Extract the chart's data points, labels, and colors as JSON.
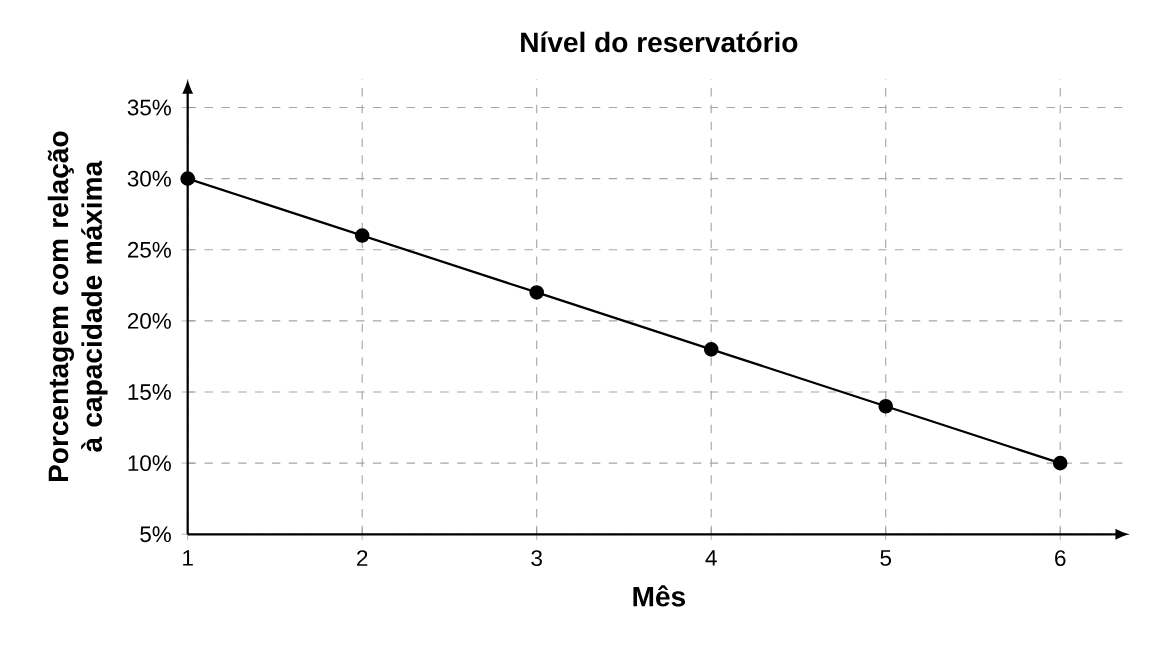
{
  "chart_data": {
    "type": "line",
    "title": "Nível do reservatório",
    "xlabel": "Mês",
    "ylabel": "Porcentagem com relação à capacidade máxima",
    "x": [
      1,
      2,
      3,
      4,
      5,
      6
    ],
    "series": [
      {
        "color": "#000000",
        "values": [
          30,
          26,
          22,
          18,
          14,
          10
        ]
      }
    ],
    "xlim": [
      1,
      6.4
    ],
    "ylim": [
      5,
      37
    ],
    "xticks": [
      1,
      2,
      3,
      4,
      5,
      6
    ],
    "yticks": [
      {
        "value": 5,
        "label": "5%"
      },
      {
        "value": 10,
        "label": "10%"
      },
      {
        "value": 15,
        "label": "15%"
      },
      {
        "value": 20,
        "label": "20%"
      },
      {
        "value": 25,
        "label": "25%"
      },
      {
        "value": 30,
        "label": "30%"
      },
      {
        "value": 35,
        "label": "35%"
      }
    ],
    "grid": true,
    "marker": "circle",
    "line_style": "solid"
  }
}
